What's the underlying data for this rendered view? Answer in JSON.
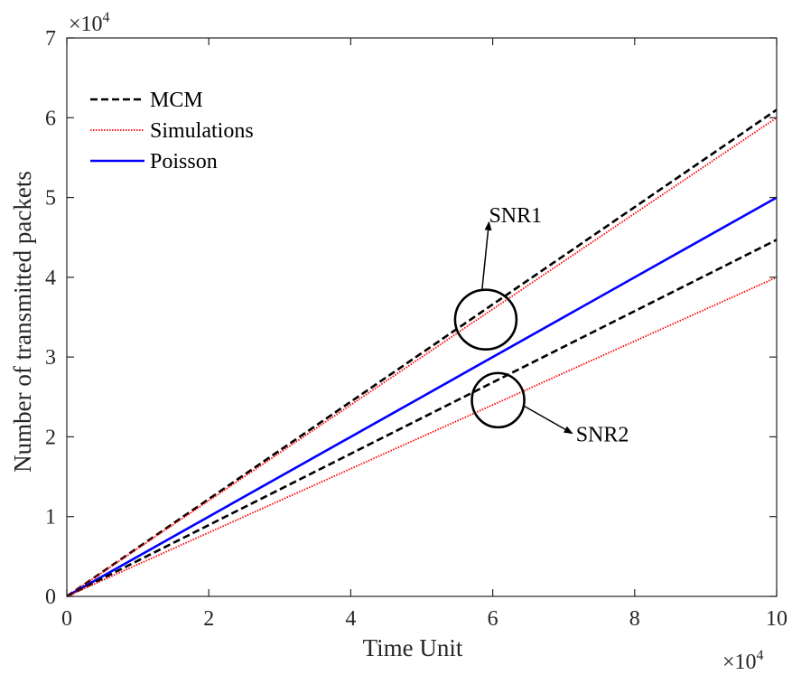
{
  "chart_data": {
    "type": "line",
    "title": "",
    "xlabel": "Time Unit",
    "ylabel": "Number of transmitted packets",
    "x_exponent_label": "×10",
    "x_exponent_power": "4",
    "y_exponent_label": "×10",
    "y_exponent_power": "4",
    "xlim": [
      0,
      10
    ],
    "ylim": [
      0,
      7
    ],
    "x_ticks": [
      "0",
      "2",
      "4",
      "6",
      "8",
      "10"
    ],
    "y_ticks": [
      "0",
      "1",
      "2",
      "3",
      "4",
      "5",
      "6",
      "7"
    ],
    "grid": false,
    "legend_position": "top-left",
    "series": [
      {
        "name": "MCM",
        "legend": true,
        "style": "dashed",
        "color": "#000000",
        "x": [
          0,
          10
        ],
        "y": [
          0,
          6.1
        ]
      },
      {
        "name": "Simulations",
        "legend": true,
        "style": "dotted",
        "color": "#ff0000",
        "x": [
          0,
          10
        ],
        "y": [
          0,
          6.0
        ]
      },
      {
        "name": "Poisson",
        "legend": true,
        "style": "solid",
        "color": "#0000ff",
        "x": [
          0,
          10
        ],
        "y": [
          0,
          5.0
        ]
      },
      {
        "name": "",
        "legend": false,
        "style": "dashed",
        "color": "#000000",
        "x": [
          0,
          10
        ],
        "y": [
          0,
          4.47
        ]
      },
      {
        "name": "",
        "legend": false,
        "style": "dotted",
        "color": "#ff0000",
        "x": [
          0,
          10
        ],
        "y": [
          0,
          4.0
        ]
      }
    ],
    "annotations": [
      {
        "label": "SNR1",
        "circle_center": [
          5.8,
          3.47
        ],
        "text_at": [
          6.1,
          4.6
        ]
      },
      {
        "label": "SNR2",
        "circle_center": [
          6.05,
          2.55
        ],
        "text_at": [
          7.35,
          2.1
        ]
      }
    ]
  }
}
